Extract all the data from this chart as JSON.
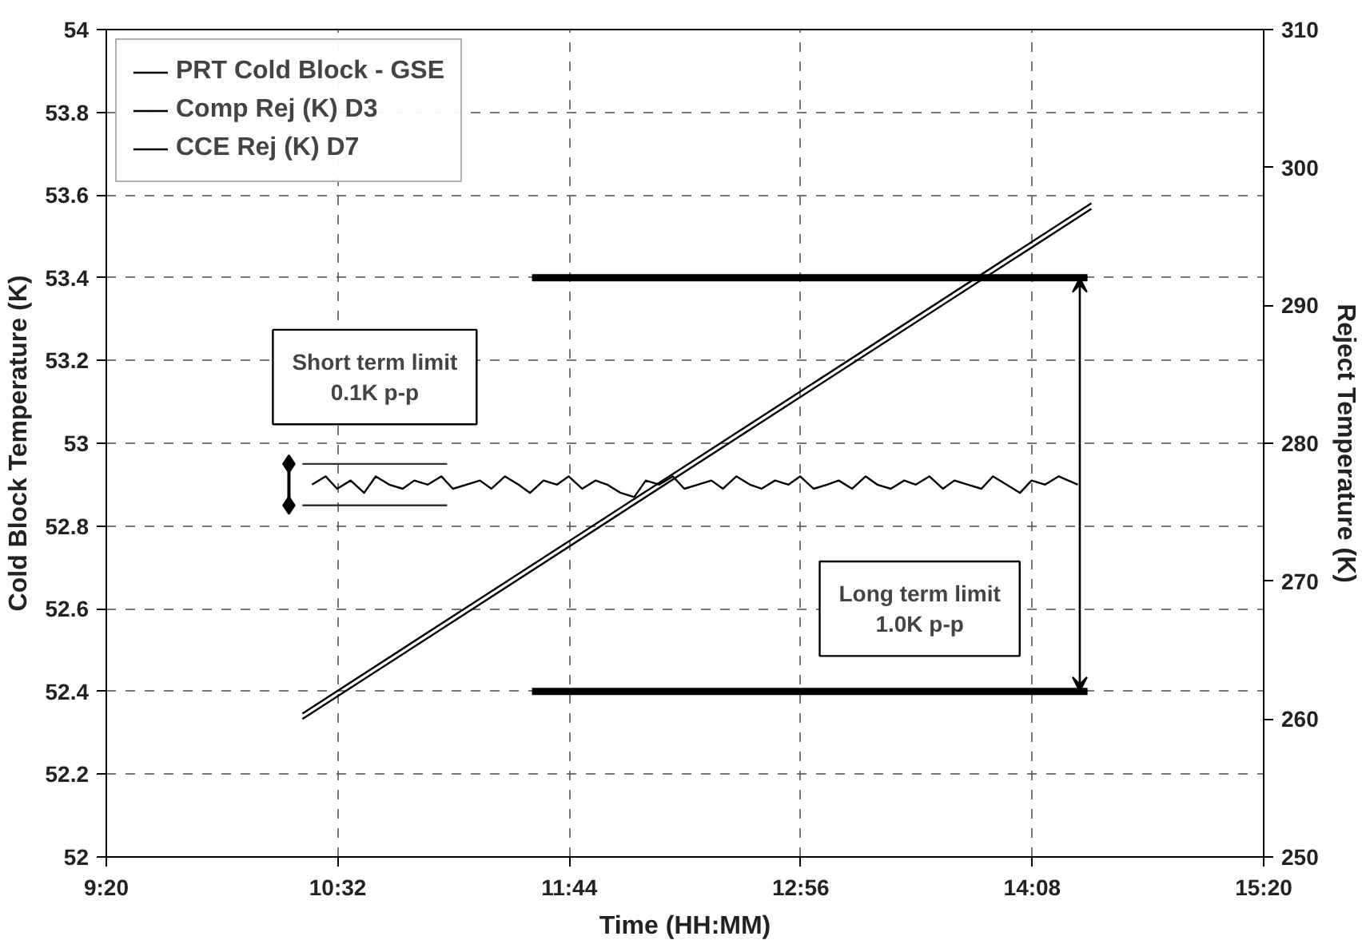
{
  "chart_data": {
    "type": "line",
    "xlabel": "Time (HH:MM)",
    "ylabel": "Cold Block Temperature (K)",
    "y2label": "Reject Temperature (K)",
    "xlim": [
      9.3333,
      15.3333
    ],
    "xticks": [
      {
        "value": 9.3333,
        "label": "9:20"
      },
      {
        "value": 10.5333,
        "label": "10:32"
      },
      {
        "value": 11.7333,
        "label": "11:44"
      },
      {
        "value": 12.9333,
        "label": "12:56"
      },
      {
        "value": 14.1333,
        "label": "14:08"
      },
      {
        "value": 15.3333,
        "label": "15:20"
      }
    ],
    "ylim": [
      52,
      54
    ],
    "yticks": [
      52,
      52.2,
      52.4,
      52.6,
      52.8,
      53,
      53.2,
      53.4,
      53.6,
      53.8,
      54
    ],
    "y2lim": [
      250,
      310
    ],
    "y2ticks": [
      250,
      260,
      270,
      280,
      290,
      300,
      310
    ],
    "grid": true,
    "legend": "top left",
    "series": [
      {
        "name": "PRT Cold Block - GSE",
        "color": "#000000",
        "x": [
          10.4,
          10.47,
          10.53,
          10.6,
          10.67,
          10.73,
          10.8,
          10.87,
          10.93,
          11.0,
          11.07,
          11.13,
          11.2,
          11.27,
          11.33,
          11.4,
          11.47,
          11.53,
          11.6,
          11.67,
          11.73,
          11.8,
          11.87,
          11.93,
          12.0,
          12.07,
          12.13,
          12.2,
          12.27,
          12.33,
          12.4,
          12.47,
          12.53,
          12.6,
          12.67,
          12.73,
          12.8,
          12.87,
          12.93,
          13.0,
          13.07,
          13.13,
          13.2,
          13.27,
          13.33,
          13.4,
          13.47,
          13.53,
          13.6,
          13.67,
          13.73,
          13.8,
          13.87,
          13.93,
          14.0,
          14.07,
          14.13,
          14.2,
          14.27,
          14.37
        ],
        "values": [
          52.9,
          52.92,
          52.89,
          52.91,
          52.88,
          52.92,
          52.9,
          52.89,
          52.91,
          52.9,
          52.92,
          52.89,
          52.9,
          52.91,
          52.89,
          52.92,
          52.9,
          52.88,
          52.91,
          52.9,
          52.92,
          52.89,
          52.91,
          52.9,
          52.88,
          52.87,
          52.91,
          52.9,
          52.92,
          52.89,
          52.9,
          52.91,
          52.89,
          52.92,
          52.9,
          52.89,
          52.91,
          52.9,
          52.92,
          52.89,
          52.9,
          52.91,
          52.89,
          52.92,
          52.9,
          52.89,
          52.91,
          52.9,
          52.92,
          52.89,
          52.91,
          52.9,
          52.89,
          52.92,
          52.9,
          52.88,
          52.91,
          52.9,
          52.92,
          52.9
        ]
      },
      {
        "name": "Comp Rej (K) D3",
        "color": "#000000",
        "axis": "y2",
        "x": [
          10.35,
          14.44
        ],
        "values": [
          260.4,
          297.4
        ]
      },
      {
        "name": "CCE Rej (K) D7",
        "color": "#000000",
        "axis": "y2",
        "x": [
          10.35,
          14.44
        ],
        "values": [
          260.0,
          297.0
        ]
      },
      {
        "color": "#000000",
        "x": [
          11.54,
          14.42
        ],
        "values": [
          53.4,
          53.4
        ]
      },
      {
        "color": "#000000",
        "x": [
          11.54,
          14.42
        ],
        "values": [
          52.4,
          52.4
        ]
      },
      {
        "color": "#333333",
        "line_style": "solid",
        "x": [
          10.35,
          11.1
        ],
        "values": [
          52.95,
          52.95
        ]
      },
      {
        "color": "#333333",
        "line_style": "solid",
        "x": [
          10.35,
          11.1
        ],
        "values": [
          52.85,
          52.85
        ]
      }
    ],
    "annotations": [
      "Short term limit\n0.1K p-p",
      "Long term limit\n1.0K p-p"
    ]
  }
}
